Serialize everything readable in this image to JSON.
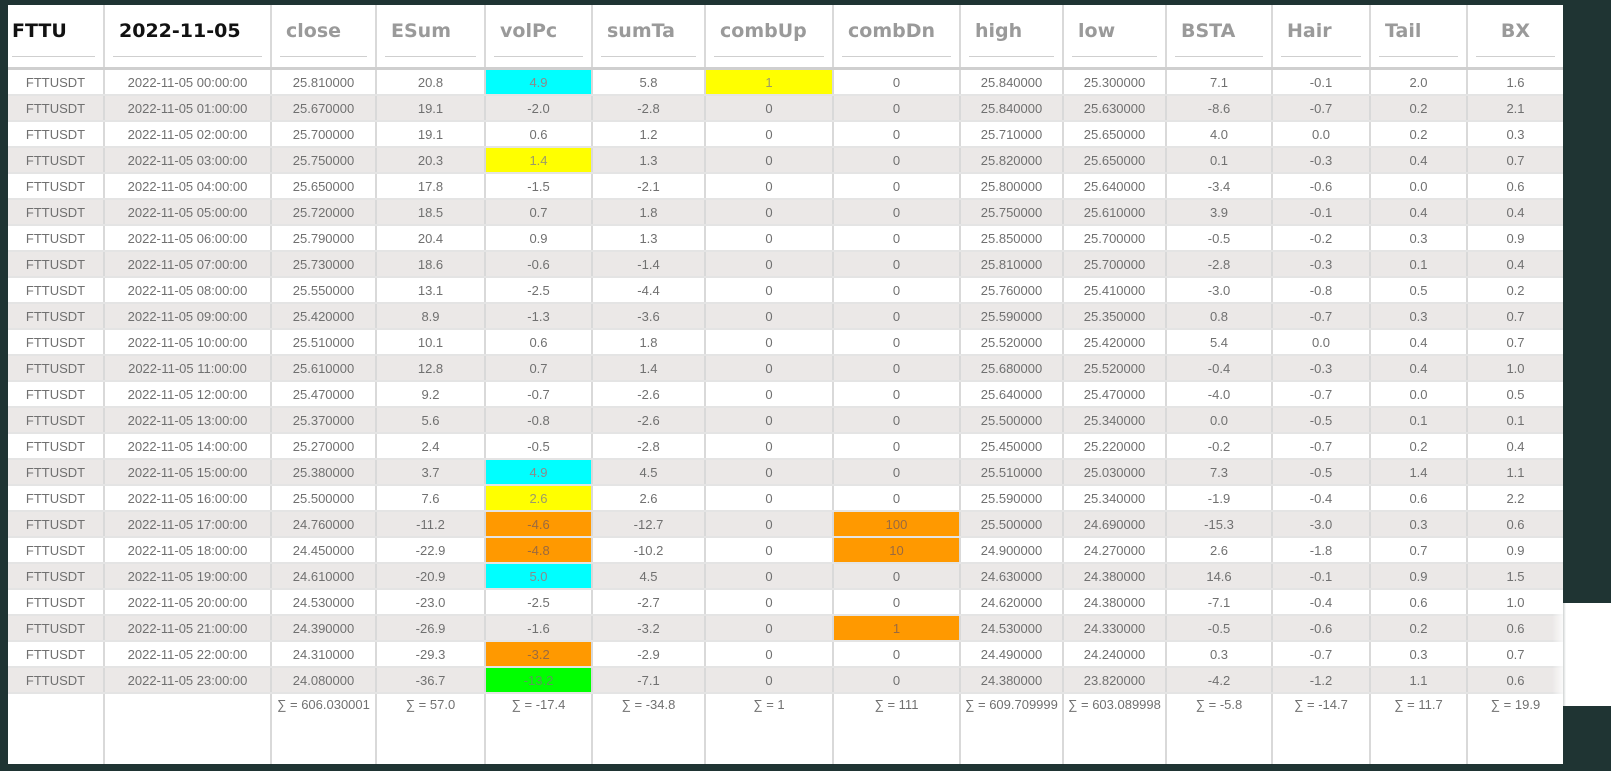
{
  "table": {
    "columns": [
      "FTTU",
      "2022-11-05",
      "close",
      "ESum",
      "volPc",
      "sumTa",
      "combUp",
      "combDn",
      "high",
      "low",
      "BSTA",
      "Hair",
      "Tail",
      "BX"
    ],
    "rows": [
      [
        "FTTUSDT",
        "2022-11-05 00:00:00",
        "25.810000",
        "20.8",
        "4.9",
        "5.8",
        "1",
        "0",
        "25.840000",
        "25.300000",
        "7.1",
        "-0.1",
        "2.0",
        "1.6"
      ],
      [
        "FTTUSDT",
        "2022-11-05 01:00:00",
        "25.670000",
        "19.1",
        "-2.0",
        "-2.8",
        "0",
        "0",
        "25.840000",
        "25.630000",
        "-8.6",
        "-0.7",
        "0.2",
        "2.1"
      ],
      [
        "FTTUSDT",
        "2022-11-05 02:00:00",
        "25.700000",
        "19.1",
        "0.6",
        "1.2",
        "0",
        "0",
        "25.710000",
        "25.650000",
        "4.0",
        "0.0",
        "0.2",
        "0.3"
      ],
      [
        "FTTUSDT",
        "2022-11-05 03:00:00",
        "25.750000",
        "20.3",
        "1.4",
        "1.3",
        "0",
        "0",
        "25.820000",
        "25.650000",
        "0.1",
        "-0.3",
        "0.4",
        "0.7"
      ],
      [
        "FTTUSDT",
        "2022-11-05 04:00:00",
        "25.650000",
        "17.8",
        "-1.5",
        "-2.1",
        "0",
        "0",
        "25.800000",
        "25.640000",
        "-3.4",
        "-0.6",
        "0.0",
        "0.6"
      ],
      [
        "FTTUSDT",
        "2022-11-05 05:00:00",
        "25.720000",
        "18.5",
        "0.7",
        "1.8",
        "0",
        "0",
        "25.750000",
        "25.610000",
        "3.9",
        "-0.1",
        "0.4",
        "0.4"
      ],
      [
        "FTTUSDT",
        "2022-11-05 06:00:00",
        "25.790000",
        "20.4",
        "0.9",
        "1.3",
        "0",
        "0",
        "25.850000",
        "25.700000",
        "-0.5",
        "-0.2",
        "0.3",
        "0.9"
      ],
      [
        "FTTUSDT",
        "2022-11-05 07:00:00",
        "25.730000",
        "18.6",
        "-0.6",
        "-1.4",
        "0",
        "0",
        "25.810000",
        "25.700000",
        "-2.8",
        "-0.3",
        "0.1",
        "0.4"
      ],
      [
        "FTTUSDT",
        "2022-11-05 08:00:00",
        "25.550000",
        "13.1",
        "-2.5",
        "-4.4",
        "0",
        "0",
        "25.760000",
        "25.410000",
        "-3.0",
        "-0.8",
        "0.5",
        "0.2"
      ],
      [
        "FTTUSDT",
        "2022-11-05 09:00:00",
        "25.420000",
        "8.9",
        "-1.3",
        "-3.6",
        "0",
        "0",
        "25.590000",
        "25.350000",
        "0.8",
        "-0.7",
        "0.3",
        "0.7"
      ],
      [
        "FTTUSDT",
        "2022-11-05 10:00:00",
        "25.510000",
        "10.1",
        "0.6",
        "1.8",
        "0",
        "0",
        "25.520000",
        "25.420000",
        "5.4",
        "0.0",
        "0.4",
        "0.7"
      ],
      [
        "FTTUSDT",
        "2022-11-05 11:00:00",
        "25.610000",
        "12.8",
        "0.7",
        "1.4",
        "0",
        "0",
        "25.680000",
        "25.520000",
        "-0.4",
        "-0.3",
        "0.4",
        "1.0"
      ],
      [
        "FTTUSDT",
        "2022-11-05 12:00:00",
        "25.470000",
        "9.2",
        "-0.7",
        "-2.6",
        "0",
        "0",
        "25.640000",
        "25.470000",
        "-4.0",
        "-0.7",
        "0.0",
        "0.5"
      ],
      [
        "FTTUSDT",
        "2022-11-05 13:00:00",
        "25.370000",
        "5.6",
        "-0.8",
        "-2.6",
        "0",
        "0",
        "25.500000",
        "25.340000",
        "0.0",
        "-0.5",
        "0.1",
        "0.1"
      ],
      [
        "FTTUSDT",
        "2022-11-05 14:00:00",
        "25.270000",
        "2.4",
        "-0.5",
        "-2.8",
        "0",
        "0",
        "25.450000",
        "25.220000",
        "-0.2",
        "-0.7",
        "0.2",
        "0.4"
      ],
      [
        "FTTUSDT",
        "2022-11-05 15:00:00",
        "25.380000",
        "3.7",
        "4.9",
        "4.5",
        "0",
        "0",
        "25.510000",
        "25.030000",
        "7.3",
        "-0.5",
        "1.4",
        "1.1"
      ],
      [
        "FTTUSDT",
        "2022-11-05 16:00:00",
        "25.500000",
        "7.6",
        "2.6",
        "2.6",
        "0",
        "0",
        "25.590000",
        "25.340000",
        "-1.9",
        "-0.4",
        "0.6",
        "2.2"
      ],
      [
        "FTTUSDT",
        "2022-11-05 17:00:00",
        "24.760000",
        "-11.2",
        "-4.6",
        "-12.7",
        "0",
        "100",
        "25.500000",
        "24.690000",
        "-15.3",
        "-3.0",
        "0.3",
        "0.6"
      ],
      [
        "FTTUSDT",
        "2022-11-05 18:00:00",
        "24.450000",
        "-22.9",
        "-4.8",
        "-10.2",
        "0",
        "10",
        "24.900000",
        "24.270000",
        "2.6",
        "-1.8",
        "0.7",
        "0.9"
      ],
      [
        "FTTUSDT",
        "2022-11-05 19:00:00",
        "24.610000",
        "-20.9",
        "5.0",
        "4.5",
        "0",
        "0",
        "24.630000",
        "24.380000",
        "14.6",
        "-0.1",
        "0.9",
        "1.5"
      ],
      [
        "FTTUSDT",
        "2022-11-05 20:00:00",
        "24.530000",
        "-23.0",
        "-2.5",
        "-2.7",
        "0",
        "0",
        "24.620000",
        "24.380000",
        "-7.1",
        "-0.4",
        "0.6",
        "1.0"
      ],
      [
        "FTTUSDT",
        "2022-11-05 21:00:00",
        "24.390000",
        "-26.9",
        "-1.6",
        "-3.2",
        "0",
        "1",
        "24.530000",
        "24.330000",
        "-0.5",
        "-0.6",
        "0.2",
        "0.6"
      ],
      [
        "FTTUSDT",
        "2022-11-05 22:00:00",
        "24.310000",
        "-29.3",
        "-3.2",
        "-2.9",
        "0",
        "0",
        "24.490000",
        "24.240000",
        "0.3",
        "-0.7",
        "0.3",
        "0.7"
      ],
      [
        "FTTUSDT",
        "2022-11-05 23:00:00",
        "24.080000",
        "-36.7",
        "-13.2",
        "-7.1",
        "0",
        "0",
        "24.380000",
        "23.820000",
        "-4.2",
        "-1.2",
        "1.1",
        "0.6"
      ]
    ],
    "highlights": [
      {
        "row": 0,
        "col": 4,
        "color": "cyan"
      },
      {
        "row": 0,
        "col": 6,
        "color": "yellow"
      },
      {
        "row": 3,
        "col": 4,
        "color": "yellow"
      },
      {
        "row": 15,
        "col": 4,
        "color": "cyan"
      },
      {
        "row": 16,
        "col": 4,
        "color": "yellow"
      },
      {
        "row": 17,
        "col": 4,
        "color": "orange"
      },
      {
        "row": 17,
        "col": 7,
        "color": "orange"
      },
      {
        "row": 18,
        "col": 4,
        "color": "orange"
      },
      {
        "row": 18,
        "col": 7,
        "color": "orange"
      },
      {
        "row": 19,
        "col": 4,
        "color": "cyan"
      },
      {
        "row": 21,
        "col": 7,
        "color": "orange"
      },
      {
        "row": 22,
        "col": 4,
        "color": "orange"
      },
      {
        "row": 23,
        "col": 4,
        "color": "green"
      }
    ],
    "totals": [
      "",
      "",
      "∑ = 606.030001",
      "∑ = 57.0",
      "∑ = -17.4",
      "∑ = -34.8",
      "∑ = 1",
      "∑ = 111",
      "∑ = 609.709999",
      "∑ = 603.089998",
      "∑ = -5.8",
      "∑ = -14.7",
      "∑ = 11.7",
      "∑ = 19.9"
    ]
  },
  "colors": {
    "frame": "#1f3433",
    "row_alt": "#ebe8e7",
    "cyan": "#00ffff",
    "yellow": "#ffff00",
    "orange": "#ff9900",
    "green": "#00ff00"
  }
}
